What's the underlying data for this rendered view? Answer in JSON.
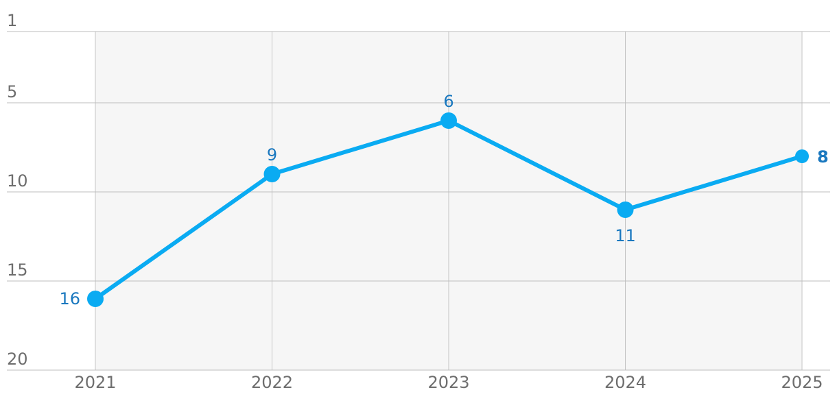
{
  "chart_data": {
    "type": "line",
    "categories": [
      "2021",
      "2022",
      "2023",
      "2024",
      "2025"
    ],
    "series": [
      {
        "color": "#0aabf2",
        "values": [
          16,
          9,
          6,
          11,
          8
        ]
      }
    ],
    "ylim": [
      1,
      20
    ],
    "invert_y": true,
    "yticks": [
      1,
      5,
      10,
      15,
      20
    ],
    "grid": true
  }
}
